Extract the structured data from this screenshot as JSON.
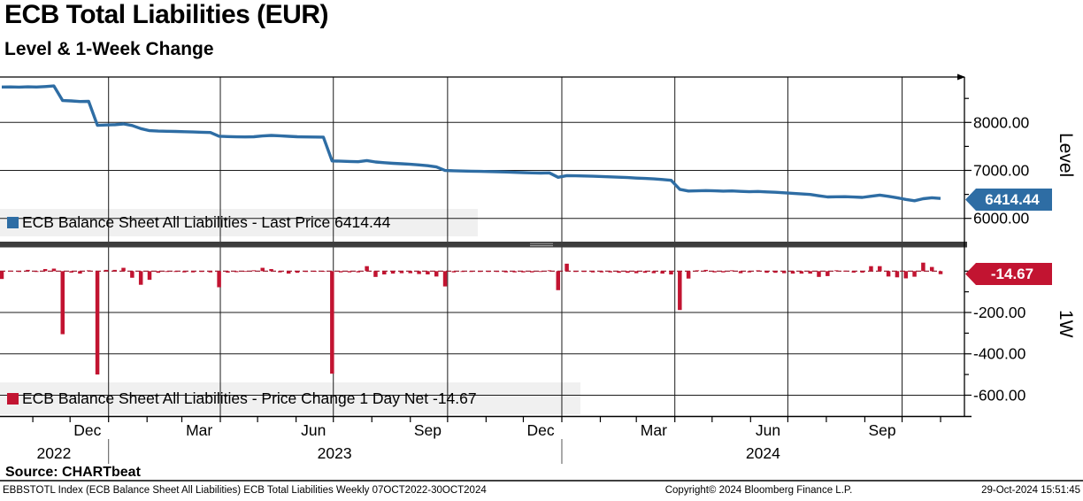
{
  "header": {
    "title": "ECB Total Liabilities (EUR)",
    "subtitle": "Level & 1-Week Change"
  },
  "colors": {
    "line_blue": "#2e6da4",
    "bar_red": "#c21431",
    "grid": "#1b1b1b",
    "legend_band": "#f0f0f0",
    "divider": "#3d3d3d",
    "divider_grip": "#9a9a9a"
  },
  "panel_level": {
    "axis_title": "Level",
    "legend_label": "ECB Balance Sheet All Liabilities - Last Price 6414.44",
    "price_tag": "6414.44",
    "yticks": [
      {
        "v": 8000,
        "label": "8000.00"
      },
      {
        "v": 7000,
        "label": "7000.00"
      },
      {
        "v": 6000,
        "label": "6000.00"
      }
    ],
    "yticks_minor": [
      8500,
      7500,
      6500
    ]
  },
  "panel_change": {
    "axis_title": "1W",
    "legend_label": "ECB Balance Sheet All Liabilities - Price Change 1 Day Net -14.67",
    "price_tag": "-14.67",
    "yticks": [
      {
        "v": -200,
        "label": "-200.00"
      },
      {
        "v": -400,
        "label": "-400.00"
      },
      {
        "v": -600,
        "label": "-600.00"
      }
    ],
    "yticks_minor": [
      0,
      -100,
      -300,
      -500
    ]
  },
  "xaxis": {
    "start_date": "07OCT2022",
    "end_date": "30OCT2024",
    "month_labels": [
      {
        "label": "Dec",
        "day": 69
      },
      {
        "label": "Mar",
        "day": 159
      },
      {
        "label": "Jun",
        "day": 251
      },
      {
        "label": "Sep",
        "day": 343
      },
      {
        "label": "Dec",
        "day": 434
      },
      {
        "label": "Mar",
        "day": 525
      },
      {
        "label": "Jun",
        "day": 617
      },
      {
        "label": "Sep",
        "day": 709
      }
    ],
    "year_labels": [
      {
        "label": "2022",
        "day": 42
      },
      {
        "label": "2023",
        "day": 268
      },
      {
        "label": "2024",
        "day": 613
      }
    ],
    "month_tick_days": [
      25,
      55,
      86,
      117,
      145,
      176,
      206,
      237,
      267,
      298,
      329,
      359,
      390,
      420,
      451,
      482,
      511,
      542,
      572,
      603,
      633,
      664,
      695,
      725,
      756
    ],
    "gridline_days": [
      86,
      176,
      267,
      359,
      451,
      542,
      633,
      725
    ],
    "year_separator_days": [
      86,
      451
    ]
  },
  "source_line": "Source: CHARTbeat",
  "footer": {
    "left": "EBBSTOTL Index (ECB Balance Sheet All Liabilities) ECB Total Liabilities  Weekly 07OCT2022-30OCT2024",
    "center": "Copyright© 2024 Bloomberg Finance L.P.",
    "right": "29-Oct-2024 15:51:45"
  },
  "chart_data": [
    {
      "type": "line",
      "panel": "Level",
      "series_name": "ECB Balance Sheet All Liabilities - Last Price",
      "frequency": "Weekly",
      "x_range": "07OCT2022-30OCT2024",
      "last_value": 6414.44,
      "ylim": [
        5900,
        8940
      ],
      "yticks_labeled": [
        8000,
        7000,
        6000
      ],
      "grid": true,
      "legend_position": "inside-bottom-left",
      "values": [
        8738,
        8740,
        8736,
        8742,
        8738,
        8748,
        8760,
        8455,
        8448,
        8436,
        8440,
        7940,
        7946,
        7952,
        7968,
        7936,
        7870,
        7828,
        7820,
        7816,
        7812,
        7806,
        7800,
        7796,
        7790,
        7712,
        7705,
        7700,
        7698,
        7702,
        7718,
        7728,
        7722,
        7710,
        7702,
        7698,
        7696,
        7694,
        7198,
        7192,
        7186,
        7180,
        7204,
        7176,
        7160,
        7148,
        7138,
        7128,
        7114,
        7098,
        7072,
        6998,
        6992,
        6988,
        6984,
        6980,
        6976,
        6972,
        6966,
        6960,
        6954,
        6948,
        6944,
        6948,
        6856,
        6892,
        6888,
        6884,
        6878,
        6872,
        6866,
        6858,
        6850,
        6840,
        6832,
        6822,
        6810,
        6794,
        6606,
        6570,
        6574,
        6580,
        6574,
        6568,
        6572,
        6562,
        6556,
        6560,
        6552,
        6544,
        6534,
        6522,
        6510,
        6498,
        6470,
        6446,
        6450,
        6452,
        6445,
        6438,
        6462,
        6486,
        6460,
        6430,
        6395,
        6368,
        6409,
        6429.11,
        6414.44
      ]
    },
    {
      "type": "bar",
      "panel": "1W",
      "series_name": "ECB Balance Sheet All Liabilities - Price Change 1 Day Net",
      "frequency": "Weekly",
      "x_range": "07OCT2022-30OCT2024",
      "last_value": -14.67,
      "ylim": [
        -700,
        120
      ],
      "yticks_labeled": [
        -200,
        -400,
        -600
      ],
      "grid": true,
      "legend_position": "inside-bottom-left",
      "values": [
        -38,
        2,
        -4,
        6,
        -4,
        10,
        12,
        -305,
        -7,
        -12,
        4,
        -500,
        6,
        6,
        16,
        -32,
        -66,
        -42,
        -8,
        -4,
        -4,
        -6,
        -6,
        -4,
        -6,
        -78,
        -7,
        -5,
        -2,
        4,
        16,
        10,
        -6,
        -12,
        -8,
        -4,
        -2,
        -2,
        -496,
        -6,
        -6,
        -6,
        24,
        -28,
        -16,
        -12,
        -10,
        -10,
        -14,
        -16,
        -26,
        -74,
        -6,
        -4,
        -4,
        -4,
        -4,
        -4,
        -6,
        -6,
        -6,
        -6,
        -4,
        4,
        -92,
        36,
        -4,
        -4,
        -6,
        -6,
        -6,
        -8,
        -8,
        -10,
        -8,
        -10,
        -12,
        -16,
        -188,
        -36,
        4,
        6,
        -6,
        -6,
        4,
        -10,
        -6,
        4,
        -8,
        -8,
        -10,
        -12,
        -12,
        -12,
        -28,
        -24,
        4,
        2,
        -7,
        -7,
        24,
        24,
        -26,
        -30,
        -35,
        -27,
        41,
        20.11,
        -14.67
      ]
    }
  ]
}
